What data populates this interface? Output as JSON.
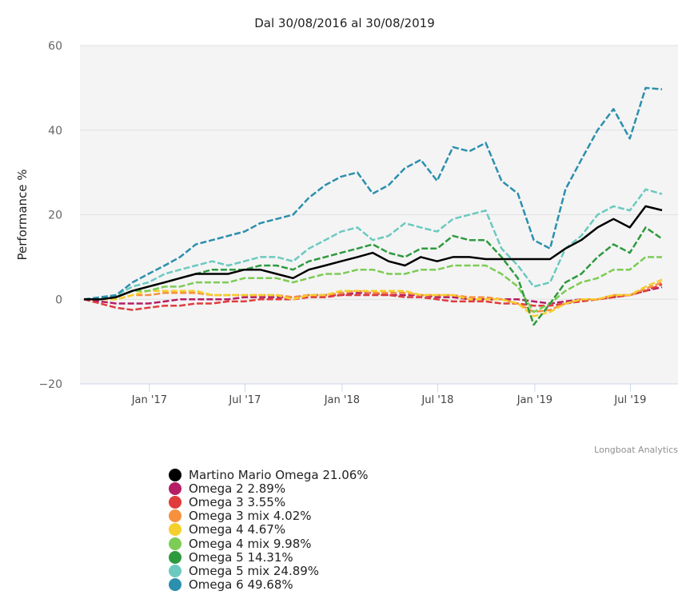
{
  "chart_data": {
    "type": "line",
    "title": "Dal 30/08/2016 al 30/08/2019",
    "xlabel": "",
    "ylabel": "Performance %",
    "ylim": [
      -20,
      60
    ],
    "yticks": [
      -20,
      0,
      20,
      40,
      60
    ],
    "xlim": [
      "2016-08-30",
      "2019-08-30"
    ],
    "xticks": [
      {
        "date": "2017-01-01",
        "label": "Jan '17"
      },
      {
        "date": "2017-07-01",
        "label": "Jul '17"
      },
      {
        "date": "2018-01-01",
        "label": "Jan '18"
      },
      {
        "date": "2018-07-01",
        "label": "Jul '18"
      },
      {
        "date": "2019-01-01",
        "label": "Jan '19"
      },
      {
        "date": "2019-07-01",
        "label": "Jul '19"
      }
    ],
    "grid": "horizontal",
    "legend_position": "bottom",
    "credit": "Longboat Analytics",
    "x": [
      "2016-08-30",
      "2016-09-30",
      "2016-10-30",
      "2016-11-30",
      "2016-12-30",
      "2017-01-30",
      "2017-02-28",
      "2017-03-30",
      "2017-04-30",
      "2017-05-30",
      "2017-06-30",
      "2017-07-30",
      "2017-08-30",
      "2017-09-30",
      "2017-10-30",
      "2017-11-30",
      "2017-12-30",
      "2018-01-30",
      "2018-02-28",
      "2018-03-30",
      "2018-04-30",
      "2018-05-30",
      "2018-06-30",
      "2018-07-30",
      "2018-08-30",
      "2018-09-30",
      "2018-10-30",
      "2018-11-30",
      "2018-12-30",
      "2019-01-30",
      "2019-02-28",
      "2019-03-30",
      "2019-04-30",
      "2019-05-30",
      "2019-06-30",
      "2019-07-30",
      "2019-08-30"
    ],
    "series": [
      {
        "name": "Omega 2",
        "label": "Omega 2 2.89%",
        "color": "#b51e64",
        "dash": true,
        "values": [
          0,
          -0.5,
          -1,
          -1,
          -1,
          -0.5,
          0,
          0,
          0,
          0,
          0.5,
          0.5,
          0.5,
          0.5,
          1,
          1,
          1,
          1.5,
          1.5,
          1,
          1,
          1,
          0.5,
          0.5,
          0,
          0,
          0,
          0,
          -0.5,
          -1,
          -0.5,
          0,
          0,
          0.5,
          1,
          2,
          2.89
        ]
      },
      {
        "name": "Omega 3",
        "label": "Omega 3 3.55%",
        "color": "#e03c3c",
        "dash": true,
        "values": [
          0,
          -1,
          -2,
          -2.5,
          -2,
          -1.5,
          -1.5,
          -1,
          -1,
          -0.5,
          -0.5,
          0,
          0,
          0,
          0.5,
          0.5,
          1,
          1,
          1,
          1,
          0.5,
          0.5,
          0,
          -0.5,
          -0.5,
          -0.5,
          -1,
          -1,
          -1.5,
          -1.5,
          -1,
          -0.5,
          0,
          0.5,
          1,
          2,
          3.55
        ]
      },
      {
        "name": "Omega 3 mix",
        "label": "Omega 3 mix 4.02%",
        "color": "#f7913d",
        "dash": true,
        "values": [
          0,
          0,
          0,
          1,
          1,
          1.5,
          1.5,
          1.5,
          1,
          1,
          1,
          1,
          1,
          0.5,
          1,
          1,
          1.5,
          2,
          1.5,
          1.5,
          1.5,
          1,
          1,
          1,
          0.5,
          0.5,
          0,
          -1,
          -3,
          -2.5,
          -1,
          0,
          0,
          1,
          1,
          2.5,
          4.02
        ]
      },
      {
        "name": "Omega 4",
        "label": "Omega 4 4.67%",
        "color": "#f5cf2c",
        "dash": true,
        "values": [
          0,
          0,
          0,
          1,
          2,
          2,
          2,
          2,
          1,
          1,
          1,
          1,
          1,
          0,
          1,
          1,
          2,
          2,
          2,
          2,
          2,
          1,
          1,
          1,
          0,
          0,
          0,
          -1,
          -4,
          -3,
          -1,
          0,
          0,
          1,
          1,
          3,
          4.67
        ]
      },
      {
        "name": "Omega 4 mix",
        "label": "Omega 4 mix 9.98%",
        "color": "#7ccc55",
        "dash": true,
        "values": [
          0,
          0,
          0.5,
          2,
          2,
          3,
          3,
          4,
          4,
          4,
          5,
          5,
          5,
          4,
          5,
          6,
          6,
          7,
          7,
          6,
          6,
          7,
          7,
          8,
          8,
          8,
          6,
          3,
          -3,
          -1,
          2,
          4,
          5,
          7,
          7,
          10,
          9.98
        ]
      },
      {
        "name": "Omega 5",
        "label": "Omega 5 14.31%",
        "color": "#2e9a3f",
        "dash": true,
        "values": [
          0,
          0,
          0.5,
          2,
          3,
          4,
          5,
          6,
          7,
          7,
          7,
          8,
          8,
          7,
          9,
          10,
          11,
          12,
          13,
          11,
          10,
          12,
          12,
          15,
          14,
          14,
          10,
          5,
          -6,
          -1,
          4,
          6,
          10,
          13,
          11,
          17,
          14.31
        ]
      },
      {
        "name": "Omega 5 mix",
        "label": "Omega 5 mix 24.89%",
        "color": "#6cc9c0",
        "dash": true,
        "values": [
          0,
          0,
          1,
          3,
          4,
          6,
          7,
          8,
          9,
          8,
          9,
          10,
          10,
          9,
          12,
          14,
          16,
          17,
          14,
          15,
          18,
          17,
          16,
          19,
          20,
          21,
          12,
          8,
          3,
          4,
          12,
          15,
          20,
          22,
          21,
          26,
          24.89
        ]
      },
      {
        "name": "Omega 6",
        "label": "Omega 6 49.68%",
        "color": "#2b8fad",
        "dash": true,
        "values": [
          0,
          0.5,
          1,
          4,
          6,
          8,
          10,
          13,
          14,
          15,
          16,
          18,
          19,
          20,
          24,
          27,
          29,
          30,
          25,
          27,
          31,
          33,
          28,
          36,
          35,
          37,
          28,
          25,
          14,
          12,
          26,
          33,
          40,
          45,
          38,
          50,
          49.68
        ]
      },
      {
        "name": "Martino Mario Omega",
        "label": "Martino Mario Omega 21.06%",
        "color": "#000000",
        "dash": false,
        "values": [
          0,
          0,
          0.5,
          2,
          3,
          4,
          5,
          6,
          6,
          6,
          7,
          7,
          6,
          5,
          7,
          8,
          9,
          10,
          11,
          9,
          8,
          10,
          9,
          10,
          10,
          9.5,
          9.5,
          9.5,
          9.5,
          9.5,
          12,
          14,
          17,
          19,
          17,
          22,
          21.06
        ]
      }
    ],
    "legend_order": [
      8,
      0,
      1,
      2,
      3,
      4,
      5,
      6,
      7
    ]
  }
}
